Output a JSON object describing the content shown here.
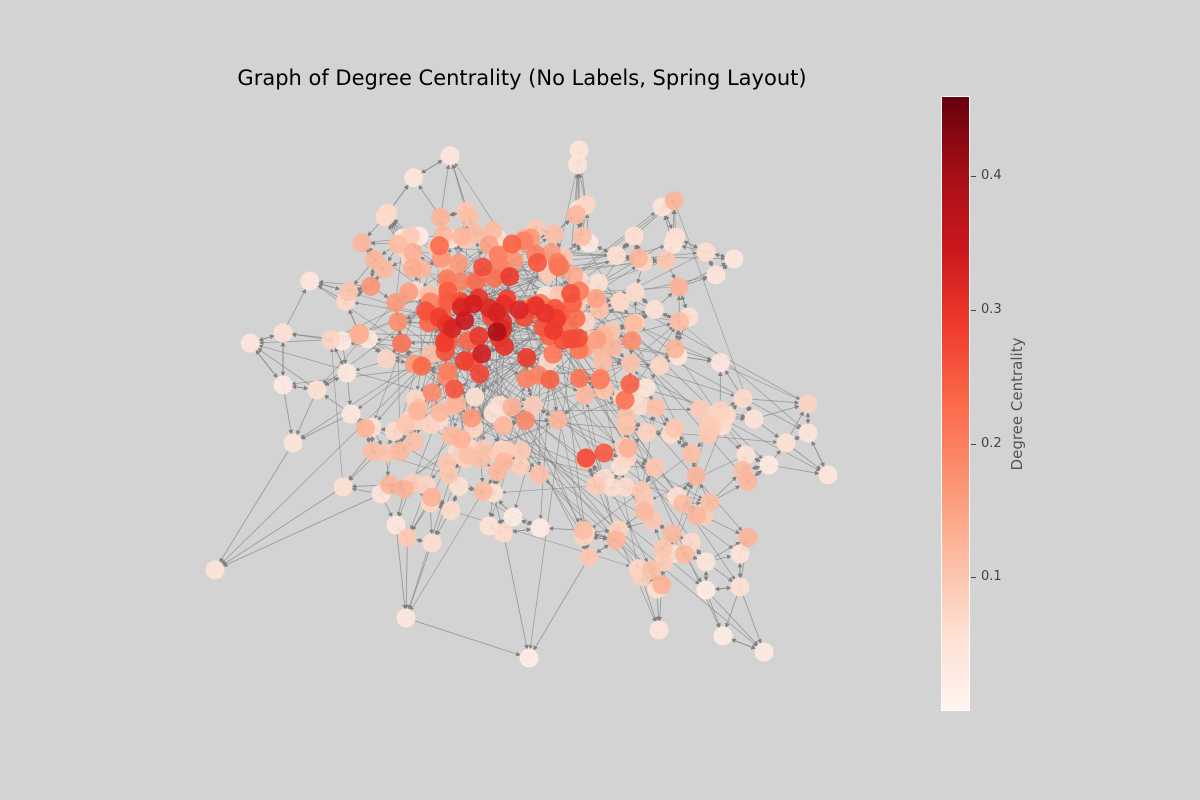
{
  "title": "Graph of Degree Centrality (No Labels, Spring Layout)",
  "colors": {
    "background": "#d3d3d3",
    "edge": "#808080",
    "node_low": "#fff5f0",
    "node_mid": "#fb6a4a",
    "node_high": "#67000d"
  },
  "colorbar": {
    "label": "Degree Centrality",
    "colormap": "Reds",
    "min": 0.0,
    "max": 0.46,
    "ticks": [
      {
        "value": 0.1,
        "label": "0.1"
      },
      {
        "value": 0.2,
        "label": "0.2"
      },
      {
        "value": 0.3,
        "label": "0.3"
      },
      {
        "value": 0.4,
        "label": "0.4"
      }
    ]
  },
  "chart_data": {
    "type": "scatter",
    "subtype": "network-graph",
    "layout": "spring",
    "directed": true,
    "node_labels": false,
    "value_name": "Degree Centrality"
  }
}
